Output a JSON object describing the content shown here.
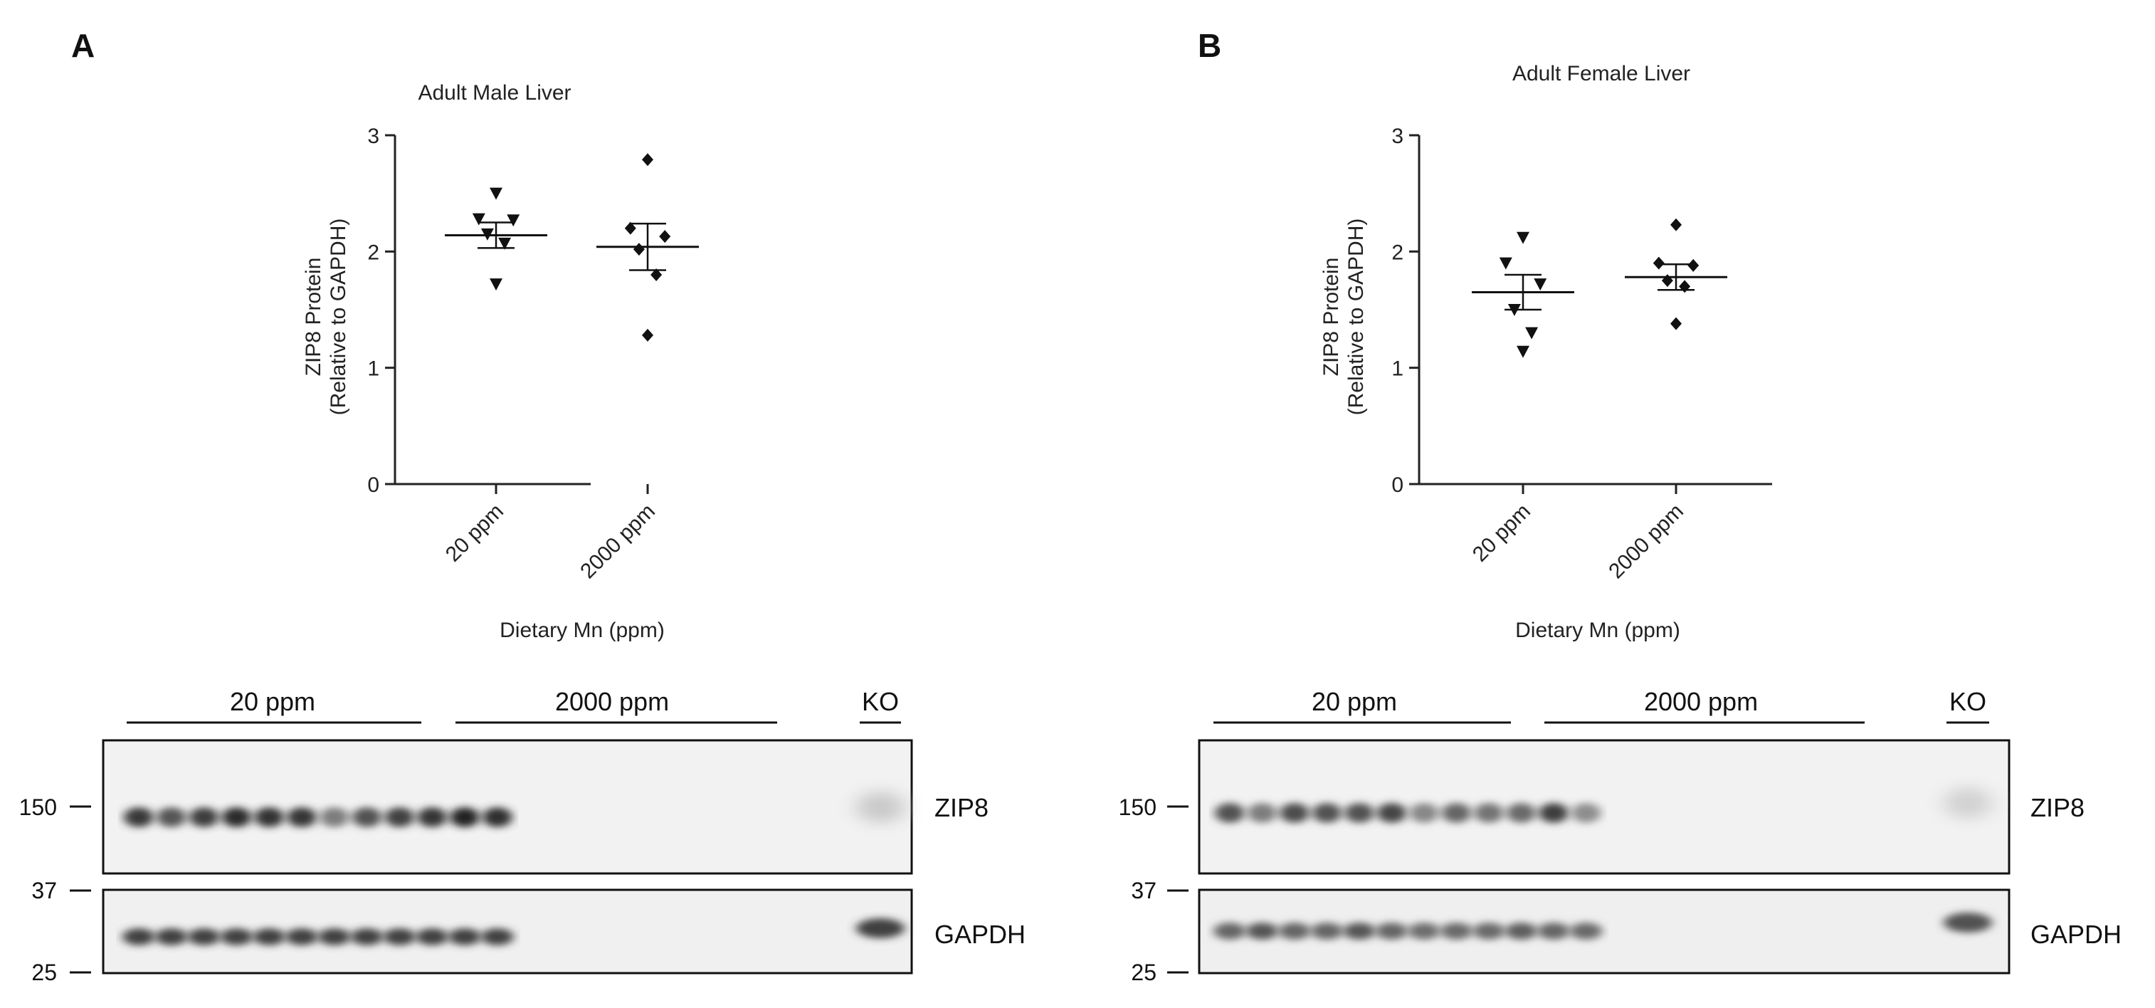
{
  "panels": [
    {
      "letter": "A",
      "chart_data": {
        "type": "scatter",
        "title": "Adult Male Liver",
        "xlabel": "Dietary Mn (ppm)",
        "ylabel_line1": "ZIP8 Protein",
        "ylabel_line2": "(Relative to GAPDH)",
        "categories": [
          "20 ppm",
          "2000 ppm"
        ],
        "ylim": [
          0,
          3
        ],
        "yticks": [
          "0",
          "1",
          "2",
          "3"
        ],
        "markers": [
          "triangle-down",
          "diamond"
        ],
        "series": [
          {
            "values": [
              2.5,
              2.28,
              2.27,
              2.15,
              2.07,
              1.72
            ],
            "mean": 2.14,
            "sem": 0.11
          },
          {
            "values": [
              2.79,
              2.2,
              2.13,
              2.02,
              1.8,
              1.28
            ],
            "mean": 2.04,
            "sem": 0.2
          }
        ]
      },
      "blot": {
        "groups": [
          "20 ppm",
          "2000 ppm",
          "KO"
        ],
        "upper_label": "ZIP8",
        "lower_label": "GAPDH",
        "mw_upper": "150",
        "mw_mid": "37",
        "mw_low": "25",
        "zip8_band_intensity": [
          0.85,
          0.7,
          0.82,
          0.92,
          0.88,
          0.86,
          0.5,
          0.72,
          0.8,
          0.86,
          0.95,
          0.9
        ],
        "ko_zip8_intensity": 0.12,
        "gapdh_band_intensity": [
          0.8,
          0.8,
          0.8,
          0.8,
          0.8,
          0.8,
          0.8,
          0.8,
          0.8,
          0.8,
          0.8,
          0.8
        ],
        "ko_gapdh_intensity": 0.8
      }
    },
    {
      "letter": "B",
      "chart_data": {
        "type": "scatter",
        "title": "Adult Female Liver",
        "xlabel": "Dietary Mn (ppm)",
        "ylabel_line1": "ZIP8 Protein",
        "ylabel_line2": "(Relative to GAPDH)",
        "categories": [
          "20 ppm",
          "2000 ppm"
        ],
        "ylim": [
          0,
          3
        ],
        "yticks": [
          "0",
          "1",
          "2",
          "3"
        ],
        "markers": [
          "triangle-down",
          "diamond"
        ],
        "series": [
          {
            "values": [
              2.12,
              1.9,
              1.72,
              1.5,
              1.3,
              1.14
            ],
            "mean": 1.65,
            "sem": 0.15
          },
          {
            "values": [
              2.23,
              1.9,
              1.88,
              1.75,
              1.7,
              1.38
            ],
            "mean": 1.78,
            "sem": 0.11
          }
        ]
      },
      "blot": {
        "groups": [
          "20 ppm",
          "2000 ppm",
          "KO"
        ],
        "upper_label": "ZIP8",
        "lower_label": "GAPDH",
        "mw_upper": "150",
        "mw_mid": "37",
        "mw_low": "25",
        "zip8_band_intensity": [
          0.72,
          0.5,
          0.75,
          0.72,
          0.72,
          0.78,
          0.45,
          0.62,
          0.55,
          0.6,
          0.82,
          0.42
        ],
        "ko_zip8_intensity": 0.08,
        "gapdh_band_intensity": [
          0.62,
          0.7,
          0.62,
          0.62,
          0.7,
          0.62,
          0.58,
          0.6,
          0.6,
          0.66,
          0.62,
          0.6
        ],
        "ko_gapdh_intensity": 0.72
      }
    }
  ]
}
